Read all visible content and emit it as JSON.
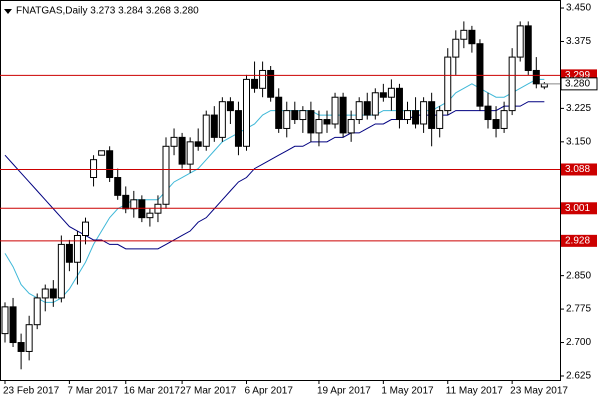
{
  "chart_data": {
    "type": "candlestick",
    "title": "FNATGAS,Daily  3.273 3.284 3.268 3.280",
    "categories": [
      "23 Feb 2017",
      null,
      null,
      null,
      null,
      null,
      null,
      null,
      "7 Mar 2017",
      null,
      null,
      null,
      null,
      null,
      null,
      "16 Mar 2017",
      null,
      null,
      null,
      null,
      null,
      null,
      "27 Mar 2017",
      null,
      null,
      null,
      null,
      null,
      null,
      null,
      "6 Apr 2017",
      null,
      null,
      null,
      null,
      null,
      null,
      null,
      null,
      "19 Apr 2017",
      null,
      null,
      null,
      null,
      null,
      null,
      null,
      "1 May 2017",
      null,
      null,
      null,
      null,
      null,
      null,
      null,
      "11 May 2017",
      null,
      null,
      null,
      null,
      null,
      null,
      null,
      "23 May 2017",
      null,
      null,
      null,
      null
    ],
    "open": [
      2.72,
      2.78,
      2.7,
      2.68,
      2.74,
      2.8,
      2.82,
      2.8,
      2.92,
      2.88,
      2.94,
      3.07,
      3.12,
      3.13,
      3.07,
      3.03,
      3.0,
      3.02,
      2.98,
      2.99,
      3.01,
      3.14,
      3.16,
      3.1,
      3.15,
      3.14,
      3.21,
      3.16,
      3.24,
      3.22,
      3.14,
      3.29,
      3.27,
      3.31,
      3.25,
      3.18,
      3.22,
      3.2,
      3.22,
      3.17,
      3.2,
      3.19,
      3.25,
      3.17,
      3.2,
      3.24,
      3.21,
      3.26,
      3.25,
      3.27,
      3.2,
      3.22,
      3.19,
      3.24,
      3.18,
      3.22,
      3.34,
      3.38,
      3.4,
      3.37,
      3.23,
      3.2,
      3.18,
      3.22,
      3.34,
      3.41,
      3.31,
      3.273
    ],
    "high": [
      2.79,
      2.8,
      2.72,
      2.76,
      2.81,
      2.83,
      2.84,
      2.94,
      2.93,
      2.95,
      2.98,
      3.12,
      3.13,
      3.14,
      3.09,
      3.05,
      3.04,
      3.03,
      3.0,
      3.03,
      3.16,
      3.18,
      3.17,
      3.16,
      3.18,
      3.22,
      3.23,
      3.25,
      3.25,
      3.24,
      3.3,
      3.33,
      3.33,
      3.32,
      3.27,
      3.24,
      3.24,
      3.23,
      3.24,
      3.22,
      3.22,
      3.26,
      3.26,
      3.22,
      3.25,
      3.26,
      3.27,
      3.28,
      3.29,
      3.28,
      3.24,
      3.25,
      3.25,
      3.26,
      3.23,
      3.36,
      3.4,
      3.42,
      3.41,
      3.38,
      3.26,
      3.23,
      3.24,
      3.36,
      3.42,
      3.42,
      3.34,
      3.284
    ],
    "low": [
      2.7,
      2.69,
      2.64,
      2.66,
      2.73,
      2.77,
      2.78,
      2.79,
      2.86,
      2.83,
      2.92,
      3.05,
      3.12,
      3.06,
      3.02,
      2.99,
      2.98,
      2.97,
      2.96,
      2.97,
      3.0,
      3.12,
      3.09,
      3.08,
      3.13,
      3.13,
      3.15,
      3.15,
      3.19,
      3.12,
      3.13,
      3.26,
      3.25,
      3.24,
      3.17,
      3.16,
      3.19,
      3.17,
      3.15,
      3.14,
      3.17,
      3.18,
      3.16,
      3.15,
      3.19,
      3.2,
      3.2,
      3.24,
      3.22,
      3.18,
      3.19,
      3.18,
      3.17,
      3.14,
      3.16,
      3.21,
      3.3,
      3.36,
      3.35,
      3.22,
      3.18,
      3.16,
      3.17,
      3.21,
      3.33,
      3.3,
      3.27,
      3.268
    ],
    "close": [
      2.78,
      2.7,
      2.68,
      2.74,
      2.8,
      2.82,
      2.8,
      2.92,
      2.88,
      2.94,
      2.97,
      3.11,
      3.13,
      3.07,
      3.03,
      3.0,
      3.02,
      2.98,
      2.99,
      3.01,
      3.14,
      3.16,
      3.1,
      3.15,
      3.14,
      3.21,
      3.16,
      3.24,
      3.22,
      3.14,
      3.29,
      3.27,
      3.31,
      3.25,
      3.18,
      3.22,
      3.2,
      3.22,
      3.17,
      3.2,
      3.19,
      3.25,
      3.17,
      3.2,
      3.24,
      3.21,
      3.26,
      3.25,
      3.27,
      3.2,
      3.22,
      3.19,
      3.24,
      3.18,
      3.22,
      3.34,
      3.38,
      3.4,
      3.37,
      3.23,
      3.2,
      3.18,
      3.22,
      3.34,
      3.41,
      3.31,
      3.28,
      3.28
    ],
    "lines": [
      {
        "color": "#3fb8d8",
        "values": [
          2.9,
          2.87,
          2.83,
          2.81,
          2.8,
          2.79,
          2.79,
          2.8,
          2.82,
          2.85,
          2.88,
          2.92,
          2.95,
          2.98,
          3.0,
          3.01,
          3.02,
          3.02,
          3.02,
          3.02,
          3.04,
          3.06,
          3.07,
          3.08,
          3.09,
          3.11,
          3.13,
          3.15,
          3.16,
          3.17,
          3.18,
          3.19,
          3.21,
          3.22,
          3.22,
          3.22,
          3.22,
          3.22,
          3.22,
          3.21,
          3.21,
          3.21,
          3.21,
          3.21,
          3.21,
          3.21,
          3.21,
          3.22,
          3.22,
          3.22,
          3.22,
          3.22,
          3.22,
          3.22,
          3.23,
          3.24,
          3.26,
          3.27,
          3.28,
          3.27,
          3.26,
          3.25,
          3.25,
          3.26,
          3.27,
          3.28,
          3.29,
          3.29
        ]
      },
      {
        "color": "#000080",
        "values": [
          3.12,
          3.1,
          3.08,
          3.06,
          3.04,
          3.02,
          3.0,
          2.98,
          2.96,
          2.95,
          2.94,
          2.93,
          2.93,
          2.92,
          2.92,
          2.91,
          2.91,
          2.91,
          2.91,
          2.91,
          2.92,
          2.93,
          2.94,
          2.95,
          2.97,
          2.98,
          3.0,
          3.02,
          3.04,
          3.06,
          3.07,
          3.09,
          3.1,
          3.11,
          3.12,
          3.13,
          3.14,
          3.14,
          3.15,
          3.15,
          3.15,
          3.16,
          3.16,
          3.17,
          3.17,
          3.18,
          3.19,
          3.19,
          3.2,
          3.2,
          3.2,
          3.21,
          3.21,
          3.21,
          3.21,
          3.21,
          3.22,
          3.22,
          3.22,
          3.22,
          3.22,
          3.22,
          3.23,
          3.23,
          3.23,
          3.24,
          3.24,
          3.24
        ]
      }
    ],
    "levels": [
      {
        "value": 3.299,
        "label": "3.299"
      },
      {
        "value": 3.088,
        "label": "3.088"
      },
      {
        "value": 3.001,
        "label": "3.001"
      },
      {
        "value": 2.928,
        "label": "2.928"
      }
    ],
    "level_color": "#cc0000",
    "current": {
      "value": 3.28,
      "label": "3.280"
    },
    "ylim": [
      2.616,
      3.468
    ],
    "yticks": [
      {
        "value": 3.45,
        "label": "3.450"
      },
      {
        "value": 3.375,
        "label": "3.375"
      },
      {
        "value": 3.225,
        "label": "3.225"
      },
      {
        "value": 3.15,
        "label": "3.150"
      },
      {
        "value": 2.85,
        "label": "2.850"
      },
      {
        "value": 2.775,
        "label": "2.775"
      },
      {
        "value": 2.7,
        "label": "2.700"
      },
      {
        "value": 2.625,
        "label": "2.625"
      }
    ]
  }
}
